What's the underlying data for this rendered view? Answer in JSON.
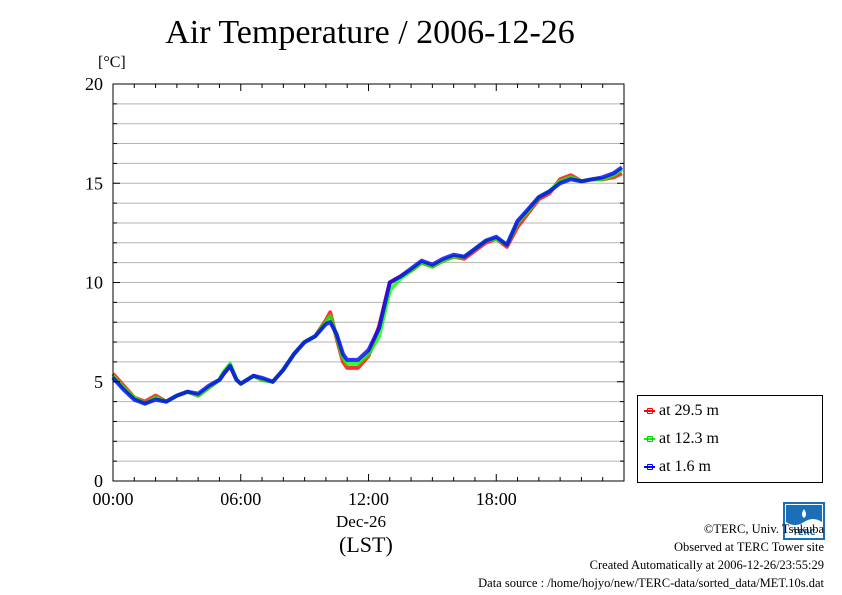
{
  "title": "Air Temperature / 2006-12-26",
  "unit_label": "[°C]",
  "date_label": "Dec-26",
  "timezone_label": "(LST)",
  "credits": {
    "copyright": "©TERC, Univ. Tsukuba",
    "site": "Observed at TERC Tower site",
    "created": "Created Automatically at 2006-12-26/23:55:29",
    "source": "Data source : /home/hojyo/new/TERC-data/sorted_data/MET.10s.dat"
  },
  "logo": {
    "text": "TERC",
    "icon": "terc-logo-icon"
  },
  "chart_data": {
    "type": "line",
    "title": "Air Temperature / 2006-12-26",
    "ylabel": "[°C]",
    "xlabel": "(LST)",
    "xlim": [
      0,
      24
    ],
    "ylim": [
      0,
      20
    ],
    "grid": true,
    "legend_position": "bottom-right",
    "y_ticks": [
      0,
      5,
      10,
      15,
      20
    ],
    "x_ticks": [
      {
        "x": 0,
        "label": "00:00"
      },
      {
        "x": 6,
        "label": "06:00"
      },
      {
        "x": 12,
        "label": "12:00"
      },
      {
        "x": 18,
        "label": "18:00"
      }
    ],
    "x": [
      0,
      0.5,
      1,
      1.5,
      2,
      2.5,
      3,
      3.5,
      4,
      4.5,
      5,
      5.2,
      5.5,
      5.8,
      6,
      6.3,
      6.6,
      7,
      7.5,
      8,
      8.5,
      9,
      9.5,
      10,
      10.2,
      10.5,
      10.8,
      11,
      11.5,
      12,
      12.5,
      13,
      13.5,
      14,
      14.5,
      15,
      15.5,
      16,
      16.5,
      17,
      17.5,
      18,
      18.5,
      19,
      19.5,
      20,
      20.5,
      21,
      21.5,
      22,
      22.5,
      23,
      23.5,
      23.9
    ],
    "series": [
      {
        "name": "at 29.5 m",
        "color": "#ff0000",
        "values": [
          5.4,
          4.8,
          4.2,
          4.0,
          4.3,
          4.0,
          4.3,
          4.5,
          4.3,
          4.7,
          5.1,
          5.4,
          5.8,
          5.1,
          4.9,
          5.1,
          5.3,
          5.1,
          5.0,
          5.6,
          6.4,
          7.0,
          7.3,
          8.1,
          8.5,
          7.2,
          6.0,
          5.7,
          5.7,
          6.3,
          7.8,
          10.0,
          10.3,
          10.6,
          11.0,
          10.8,
          11.1,
          11.3,
          11.2,
          11.6,
          12.0,
          12.2,
          11.8,
          12.8,
          13.5,
          14.2,
          14.5,
          15.2,
          15.4,
          15.1,
          15.2,
          15.2,
          15.3,
          15.5
        ]
      },
      {
        "name": "at 12.3 m",
        "color": "#00ff00",
        "values": [
          5.3,
          4.7,
          4.2,
          3.9,
          4.2,
          4.0,
          4.3,
          4.5,
          4.3,
          4.7,
          5.1,
          5.5,
          5.9,
          5.1,
          4.9,
          5.1,
          5.3,
          5.1,
          5.0,
          5.6,
          6.4,
          7.0,
          7.3,
          8.0,
          8.3,
          7.3,
          6.2,
          5.9,
          5.9,
          6.4,
          7.3,
          9.6,
          10.2,
          10.6,
          11.0,
          10.8,
          11.1,
          11.3,
          11.3,
          11.7,
          12.1,
          12.2,
          11.9,
          13.0,
          13.6,
          14.3,
          14.6,
          15.1,
          15.3,
          15.1,
          15.2,
          15.2,
          15.4,
          15.7
        ]
      },
      {
        "name": "at 1.6 m",
        "color": "#0000ff",
        "values": [
          5.2,
          4.6,
          4.1,
          3.9,
          4.1,
          4.0,
          4.3,
          4.5,
          4.4,
          4.8,
          5.1,
          5.4,
          5.8,
          5.1,
          4.9,
          5.1,
          5.3,
          5.2,
          5.0,
          5.6,
          6.4,
          7.0,
          7.3,
          7.9,
          8.0,
          7.4,
          6.4,
          6.1,
          6.1,
          6.6,
          7.7,
          10.0,
          10.3,
          10.7,
          11.1,
          10.9,
          11.2,
          11.4,
          11.3,
          11.7,
          12.1,
          12.3,
          11.9,
          13.1,
          13.7,
          14.3,
          14.6,
          15.0,
          15.2,
          15.1,
          15.2,
          15.3,
          15.5,
          15.8
        ]
      }
    ]
  }
}
